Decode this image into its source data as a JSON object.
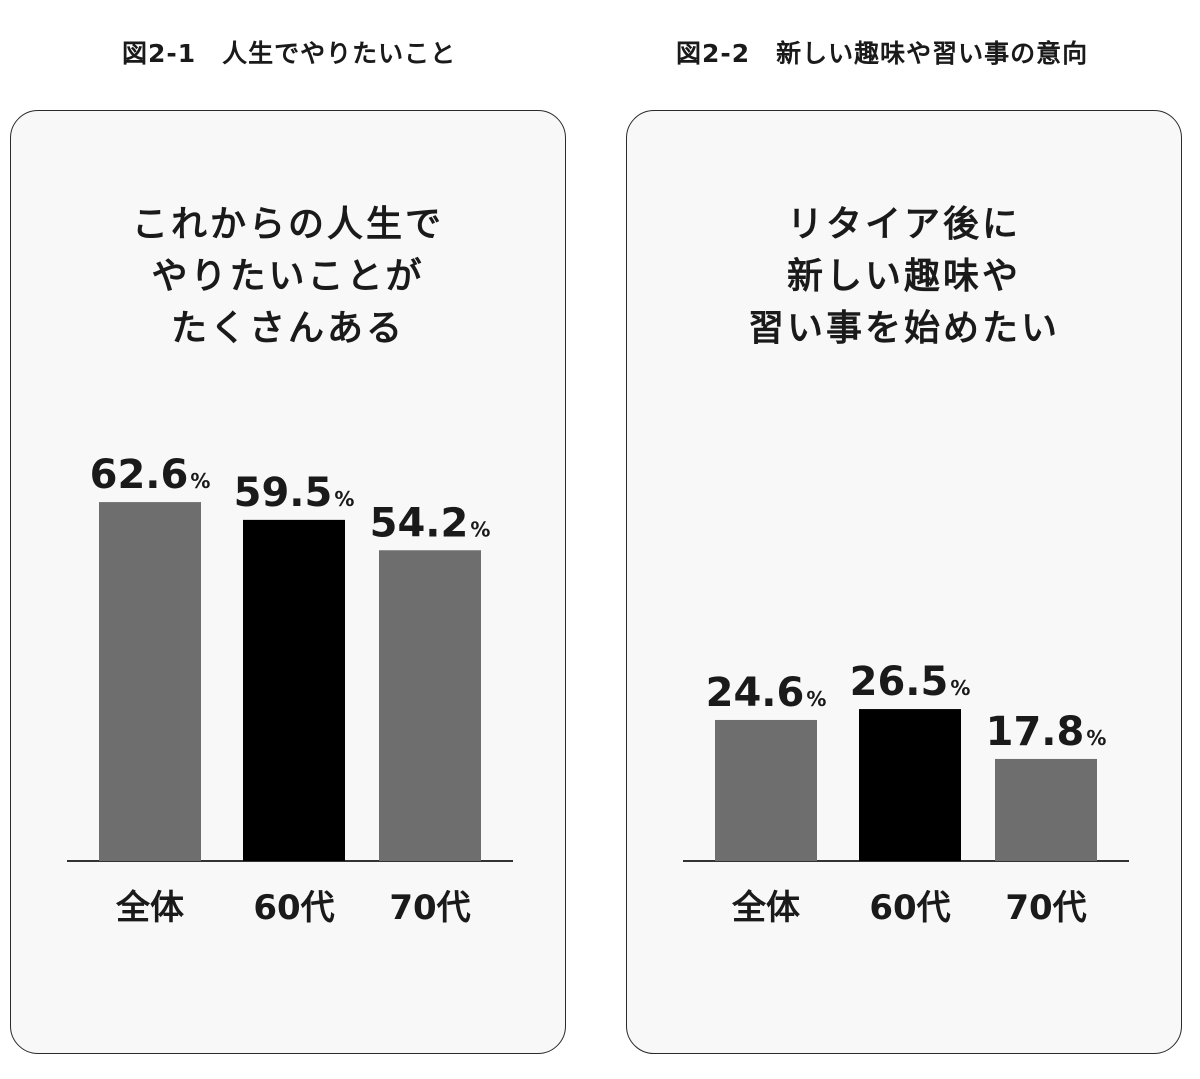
{
  "figures": [
    {
      "title": "図2-1　人生でやりたいこと",
      "caption_lines": [
        "これからの人生で",
        "やりたいことが",
        "たくさんある"
      ]
    },
    {
      "title": "図2-2　新しい趣味や習い事の意向",
      "caption_lines": [
        "リタイア後に",
        "新しい趣味や",
        "習い事を始めたい"
      ]
    }
  ],
  "chart_data": [
    {
      "type": "bar",
      "title": "図2-1　人生でやりたいこと",
      "subtitle": "これからの人生でやりたいことがたくさんある",
      "categories": [
        "全体",
        "60代",
        "70代"
      ],
      "values": [
        62.6,
        59.5,
        54.2
      ],
      "value_labels": [
        "62.6",
        "59.5",
        "54.2"
      ],
      "unit": "%",
      "bar_colors": [
        "#6e6e6e",
        "#000000",
        "#6e6e6e"
      ],
      "ylim": [
        0,
        75
      ],
      "grid": false,
      "legend": "none"
    },
    {
      "type": "bar",
      "title": "図2-2　新しい趣味や習い事の意向",
      "subtitle": "リタイア後に新しい趣味や習い事を始めたい",
      "categories": [
        "全体",
        "60代",
        "70代"
      ],
      "values": [
        24.6,
        26.5,
        17.8
      ],
      "value_labels": [
        "24.6",
        "26.5",
        "17.8"
      ],
      "unit": "%",
      "bar_colors": [
        "#6e6e6e",
        "#000000",
        "#6e6e6e"
      ],
      "ylim": [
        0,
        75
      ],
      "grid": false,
      "legend": "none"
    }
  ]
}
